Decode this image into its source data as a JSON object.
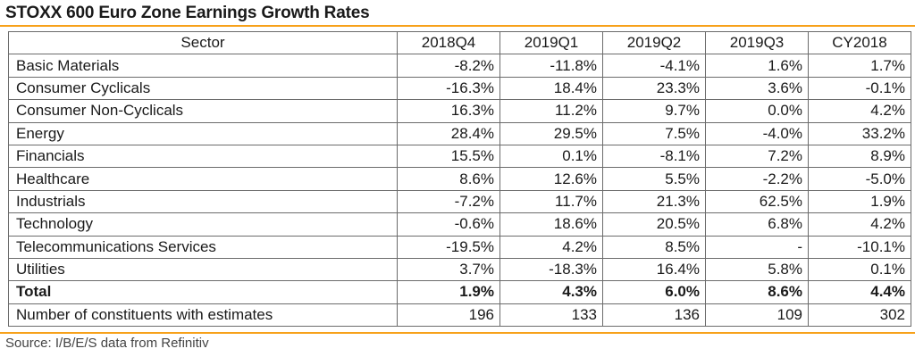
{
  "chart_data": {
    "type": "table",
    "title": "STOXX 600 Euro Zone Earnings Growth Rates",
    "columns": [
      "Sector",
      "2018Q4",
      "2019Q1",
      "2019Q2",
      "2019Q3",
      "CY2018"
    ],
    "rows": [
      {
        "sector": "Basic Materials",
        "values": [
          "-8.2%",
          "-11.8%",
          "-4.1%",
          "1.6%",
          "1.7%"
        ]
      },
      {
        "sector": "Consumer Cyclicals",
        "values": [
          "-16.3%",
          "18.4%",
          "23.3%",
          "3.6%",
          "-0.1%"
        ]
      },
      {
        "sector": "Consumer Non-Cyclicals",
        "values": [
          "16.3%",
          "11.2%",
          "9.7%",
          "0.0%",
          "4.2%"
        ]
      },
      {
        "sector": "Energy",
        "values": [
          "28.4%",
          "29.5%",
          "7.5%",
          "-4.0%",
          "33.2%"
        ]
      },
      {
        "sector": "Financials",
        "values": [
          "15.5%",
          "0.1%",
          "-8.1%",
          "7.2%",
          "8.9%"
        ]
      },
      {
        "sector": "Healthcare",
        "values": [
          "8.6%",
          "12.6%",
          "5.5%",
          "-2.2%",
          "-5.0%"
        ]
      },
      {
        "sector": "Industrials",
        "values": [
          "-7.2%",
          "11.7%",
          "21.3%",
          "62.5%",
          "1.9%"
        ]
      },
      {
        "sector": "Technology",
        "values": [
          "-0.6%",
          "18.6%",
          "20.5%",
          "6.8%",
          "4.2%"
        ]
      },
      {
        "sector": "Telecommunications Services",
        "values": [
          "-19.5%",
          "4.2%",
          "8.5%",
          "-",
          "-10.1%"
        ]
      },
      {
        "sector": "Utilities",
        "values": [
          "3.7%",
          "-18.3%",
          "16.4%",
          "5.8%",
          "0.1%"
        ]
      },
      {
        "sector": "Total",
        "values": [
          "1.9%",
          "4.3%",
          "6.0%",
          "8.6%",
          "4.4%"
        ],
        "emphasis": "bold"
      },
      {
        "sector": "Number of constituents with estimates",
        "values": [
          "196",
          "133",
          "136",
          "109",
          "302"
        ]
      }
    ],
    "source": "Source: I/B/E/S data from Refinitiv"
  },
  "colors": {
    "accent_rule": "#f7a11a",
    "grid_line": "#6b6b6b",
    "text": "#1a1a1a"
  }
}
